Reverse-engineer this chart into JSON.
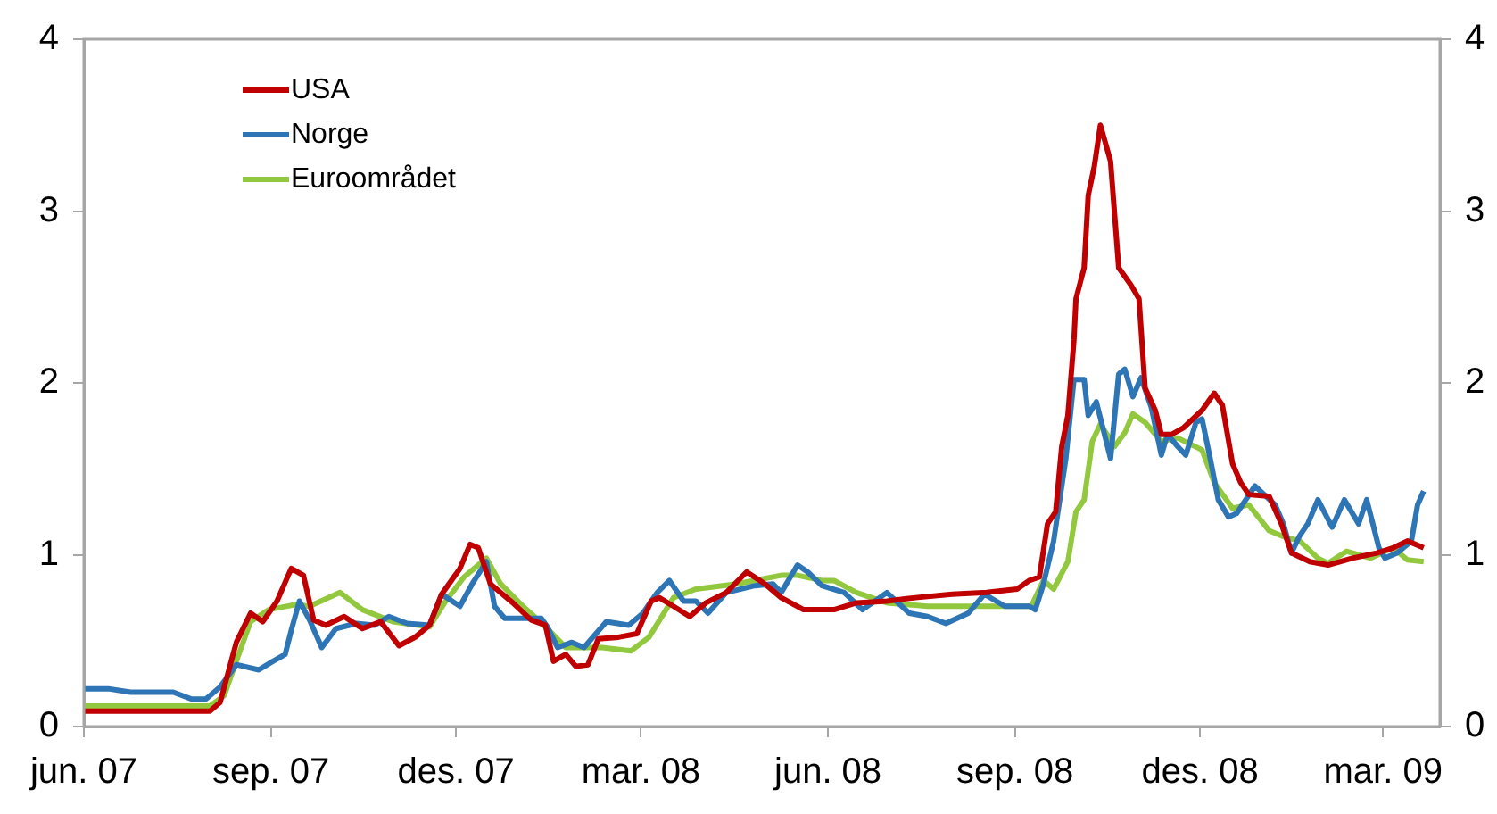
{
  "chart_data": {
    "type": "line",
    "legend": "top left",
    "grid": false,
    "xlim": [
      "2007-06-01",
      "2009-03-29"
    ],
    "xticks": [
      {
        "value": "2007-06-01",
        "label": "jun. 07"
      },
      {
        "value": "2007-09-01",
        "label": "sep. 07"
      },
      {
        "value": "2007-12-01",
        "label": "des. 07"
      },
      {
        "value": "2008-03-01",
        "label": "mar. 08"
      },
      {
        "value": "2008-06-01",
        "label": "jun. 08"
      },
      {
        "value": "2008-09-01",
        "label": "sep. 08"
      },
      {
        "value": "2008-12-01",
        "label": "des. 08"
      },
      {
        "value": "2009-03-01",
        "label": "mar. 09"
      }
    ],
    "ylim": [
      0,
      4
    ],
    "yticks": [
      0,
      1,
      2,
      3,
      4
    ],
    "y2lim": [
      0,
      4
    ],
    "y2ticks": [
      0,
      1,
      2,
      3,
      4
    ],
    "series": [
      {
        "name": "USA",
        "color": "#c00000",
        "x": [
          "2007-06-01",
          "2007-08-02",
          "2007-08-07",
          "2007-08-15",
          "2007-08-22",
          "2007-08-28",
          "2007-09-04",
          "2007-09-11",
          "2007-09-17",
          "2007-09-22",
          "2007-09-28",
          "2007-10-07",
          "2007-10-16",
          "2007-10-25",
          "2007-11-03",
          "2007-11-11",
          "2007-11-18",
          "2007-11-24",
          "2007-12-03",
          "2007-12-08",
          "2007-12-12",
          "2007-12-18",
          "2007-12-29",
          "2008-01-07",
          "2008-01-14",
          "2008-01-18",
          "2008-01-24",
          "2008-01-29",
          "2008-02-04",
          "2008-02-09",
          "2008-02-19",
          "2008-02-28",
          "2008-03-06",
          "2008-03-10",
          "2008-03-17",
          "2008-03-25",
          "2008-04-02",
          "2008-04-12",
          "2008-04-22",
          "2008-05-01",
          "2008-05-09",
          "2008-05-20",
          "2008-06-04",
          "2008-06-15",
          "2008-06-30",
          "2008-07-14",
          "2008-08-01",
          "2008-08-18",
          "2008-09-02",
          "2008-09-08",
          "2008-09-13",
          "2008-09-17",
          "2008-09-21",
          "2008-09-24",
          "2008-09-27",
          "2008-09-30",
          "2008-10-01",
          "2008-10-05",
          "2008-10-07",
          "2008-10-10",
          "2008-10-13",
          "2008-10-18",
          "2008-10-22",
          "2008-10-28",
          "2008-11-01",
          "2008-11-04",
          "2008-11-09",
          "2008-11-12",
          "2008-11-17",
          "2008-11-23",
          "2008-12-02",
          "2008-12-08",
          "2008-12-12",
          "2008-12-17",
          "2008-12-21",
          "2008-12-25",
          "2009-01-04",
          "2009-01-10",
          "2009-01-15",
          "2009-01-24",
          "2009-02-02",
          "2009-02-14",
          "2009-02-26",
          "2009-03-06",
          "2009-03-13",
          "2009-03-21"
        ],
        "values": [
          0.09,
          0.09,
          0.14,
          0.49,
          0.66,
          0.61,
          0.73,
          0.92,
          0.88,
          0.62,
          0.59,
          0.64,
          0.57,
          0.61,
          0.47,
          0.52,
          0.59,
          0.77,
          0.92,
          1.06,
          1.04,
          0.83,
          0.72,
          0.62,
          0.59,
          0.38,
          0.42,
          0.35,
          0.36,
          0.51,
          0.52,
          0.54,
          0.73,
          0.75,
          0.7,
          0.64,
          0.72,
          0.78,
          0.9,
          0.83,
          0.75,
          0.68,
          0.68,
          0.72,
          0.73,
          0.75,
          0.77,
          0.78,
          0.8,
          0.85,
          0.87,
          1.18,
          1.25,
          1.63,
          1.81,
          2.25,
          2.49,
          2.67,
          3.09,
          3.26,
          3.5,
          3.29,
          2.67,
          2.57,
          2.49,
          1.97,
          1.84,
          1.7,
          1.7,
          1.74,
          1.84,
          1.94,
          1.87,
          1.53,
          1.42,
          1.35,
          1.34,
          1.18,
          1.01,
          0.96,
          0.94,
          0.98,
          1.01,
          1.04,
          1.08,
          1.04
        ]
      },
      {
        "name": "Norge",
        "color": "#2e75b6",
        "x": [
          "2007-06-01",
          "2007-06-13",
          "2007-06-24",
          "2007-07-15",
          "2007-07-24",
          "2007-07-31",
          "2007-08-07",
          "2007-08-15",
          "2007-08-26",
          "2007-09-02",
          "2007-09-08",
          "2007-09-11",
          "2007-09-15",
          "2007-09-20",
          "2007-09-26",
          "2007-10-03",
          "2007-10-13",
          "2007-10-22",
          "2007-10-29",
          "2007-11-07",
          "2007-11-18",
          "2007-11-24",
          "2007-12-03",
          "2007-12-09",
          "2007-12-16",
          "2007-12-20",
          "2007-12-25",
          "2008-01-12",
          "2008-01-15",
          "2008-01-20",
          "2008-01-27",
          "2008-02-02",
          "2008-02-13",
          "2008-02-24",
          "2008-03-02",
          "2008-03-09",
          "2008-03-15",
          "2008-03-22",
          "2008-03-28",
          "2008-04-03",
          "2008-04-12",
          "2008-04-26",
          "2008-05-05",
          "2008-05-09",
          "2008-05-17",
          "2008-05-22",
          "2008-05-29",
          "2008-06-09",
          "2008-06-18",
          "2008-06-30",
          "2008-07-11",
          "2008-07-20",
          "2008-07-29",
          "2008-08-09",
          "2008-08-17",
          "2008-08-27",
          "2008-09-08",
          "2008-09-11",
          "2008-09-15",
          "2008-09-20",
          "2008-09-26",
          "2008-09-30",
          "2008-10-05",
          "2008-10-07",
          "2008-10-11",
          "2008-10-18",
          "2008-10-22",
          "2008-10-25",
          "2008-10-29",
          "2008-11-02",
          "2008-11-07",
          "2008-11-12",
          "2008-11-15",
          "2008-11-20",
          "2008-11-24",
          "2008-11-29",
          "2008-12-02",
          "2008-12-06",
          "2008-12-10",
          "2008-12-15",
          "2008-12-19",
          "2008-12-28",
          "2009-01-07",
          "2009-01-11",
          "2009-01-15",
          "2009-01-19",
          "2009-01-23",
          "2009-01-28",
          "2009-02-04",
          "2009-02-10",
          "2009-02-17",
          "2009-02-21",
          "2009-02-27",
          "2009-03-02",
          "2009-03-08",
          "2009-03-15",
          "2009-03-18",
          "2009-03-21"
        ],
        "values": [
          0.22,
          0.22,
          0.2,
          0.2,
          0.16,
          0.16,
          0.23,
          0.36,
          0.33,
          0.38,
          0.42,
          0.56,
          0.73,
          0.62,
          0.46,
          0.57,
          0.6,
          0.59,
          0.64,
          0.6,
          0.59,
          0.77,
          0.7,
          0.83,
          0.96,
          0.7,
          0.63,
          0.63,
          0.58,
          0.46,
          0.49,
          0.46,
          0.61,
          0.59,
          0.66,
          0.78,
          0.85,
          0.73,
          0.73,
          0.66,
          0.78,
          0.82,
          0.83,
          0.78,
          0.94,
          0.9,
          0.82,
          0.78,
          0.68,
          0.78,
          0.66,
          0.64,
          0.6,
          0.66,
          0.77,
          0.7,
          0.7,
          0.68,
          0.83,
          1.08,
          1.56,
          2.02,
          2.02,
          1.81,
          1.89,
          1.56,
          2.05,
          2.08,
          1.92,
          2.03,
          1.86,
          1.58,
          1.7,
          1.63,
          1.58,
          1.77,
          1.79,
          1.56,
          1.32,
          1.22,
          1.24,
          1.4,
          1.29,
          1.18,
          1.01,
          1.11,
          1.18,
          1.32,
          1.16,
          1.32,
          1.18,
          1.32,
          1.04,
          0.98,
          1.01,
          1.08,
          1.29,
          1.37
        ]
      },
      {
        "name": "Euroområdet",
        "color": "#92c83e",
        "x": [
          "2007-06-01",
          "2007-08-02",
          "2007-08-09",
          "2007-08-15",
          "2007-08-22",
          "2007-08-31",
          "2007-09-13",
          "2007-09-20",
          "2007-10-05",
          "2007-10-16",
          "2007-10-31",
          "2007-11-18",
          "2007-11-26",
          "2007-12-05",
          "2007-12-16",
          "2007-12-23",
          "2008-01-03",
          "2008-01-15",
          "2008-01-24",
          "2008-02-11",
          "2008-02-25",
          "2008-03-05",
          "2008-03-17",
          "2008-03-28",
          "2008-04-17",
          "2008-05-09",
          "2008-05-17",
          "2008-05-29",
          "2008-06-04",
          "2008-06-15",
          "2008-06-30",
          "2008-07-20",
          "2008-08-13",
          "2008-09-09",
          "2008-09-15",
          "2008-09-20",
          "2008-09-27",
          "2008-10-01",
          "2008-10-05",
          "2008-10-09",
          "2008-10-13",
          "2008-10-20",
          "2008-10-25",
          "2008-10-29",
          "2008-11-04",
          "2008-11-12",
          "2008-11-20",
          "2008-12-02",
          "2008-12-08",
          "2008-12-17",
          "2008-12-25",
          "2009-01-04",
          "2009-01-10",
          "2009-01-19",
          "2009-01-28",
          "2009-02-02",
          "2009-02-11",
          "2009-02-23",
          "2009-03-06",
          "2009-03-13",
          "2009-03-21"
        ],
        "values": [
          0.12,
          0.12,
          0.18,
          0.38,
          0.61,
          0.68,
          0.71,
          0.7,
          0.78,
          0.68,
          0.61,
          0.58,
          0.73,
          0.87,
          0.98,
          0.83,
          0.7,
          0.57,
          0.46,
          0.46,
          0.44,
          0.52,
          0.75,
          0.8,
          0.83,
          0.88,
          0.88,
          0.85,
          0.85,
          0.78,
          0.72,
          0.7,
          0.7,
          0.7,
          0.85,
          0.8,
          0.96,
          1.25,
          1.32,
          1.66,
          1.76,
          1.63,
          1.71,
          1.82,
          1.77,
          1.66,
          1.68,
          1.61,
          1.42,
          1.27,
          1.29,
          1.14,
          1.11,
          1.08,
          0.98,
          0.95,
          1.02,
          0.98,
          1.04,
          0.97,
          0.96
        ]
      }
    ]
  }
}
